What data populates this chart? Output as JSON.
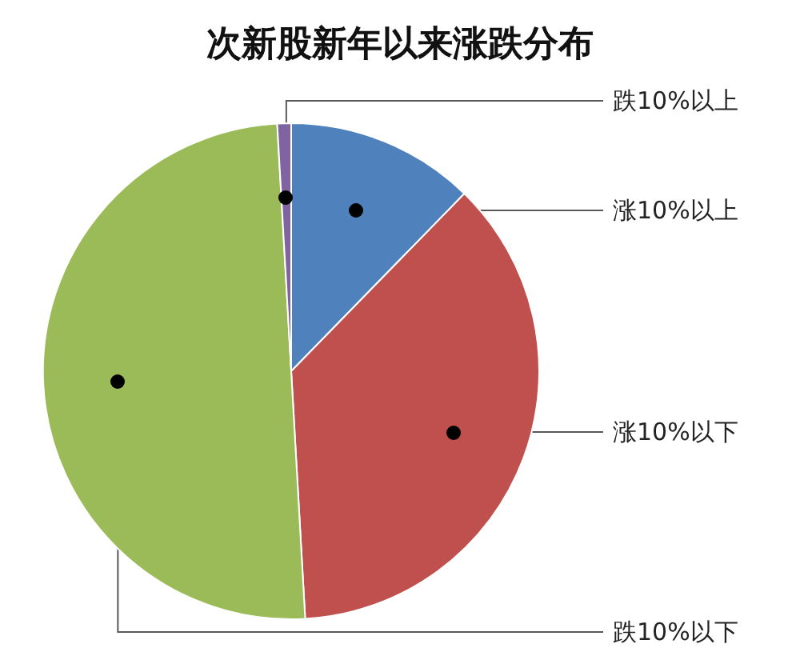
{
  "chart_data": {
    "type": "pie",
    "title": "次新股新年以来涨跌分布",
    "categories": [
      "涨10%以上",
      "涨10%以下",
      "跌10%以下",
      "跌10%以上"
    ],
    "values": [
      12.3,
      36.8,
      50.0,
      0.9
    ],
    "colors": [
      "#4f81bd",
      "#c0504d",
      "#9bbb59",
      "#8064a2"
    ]
  }
}
